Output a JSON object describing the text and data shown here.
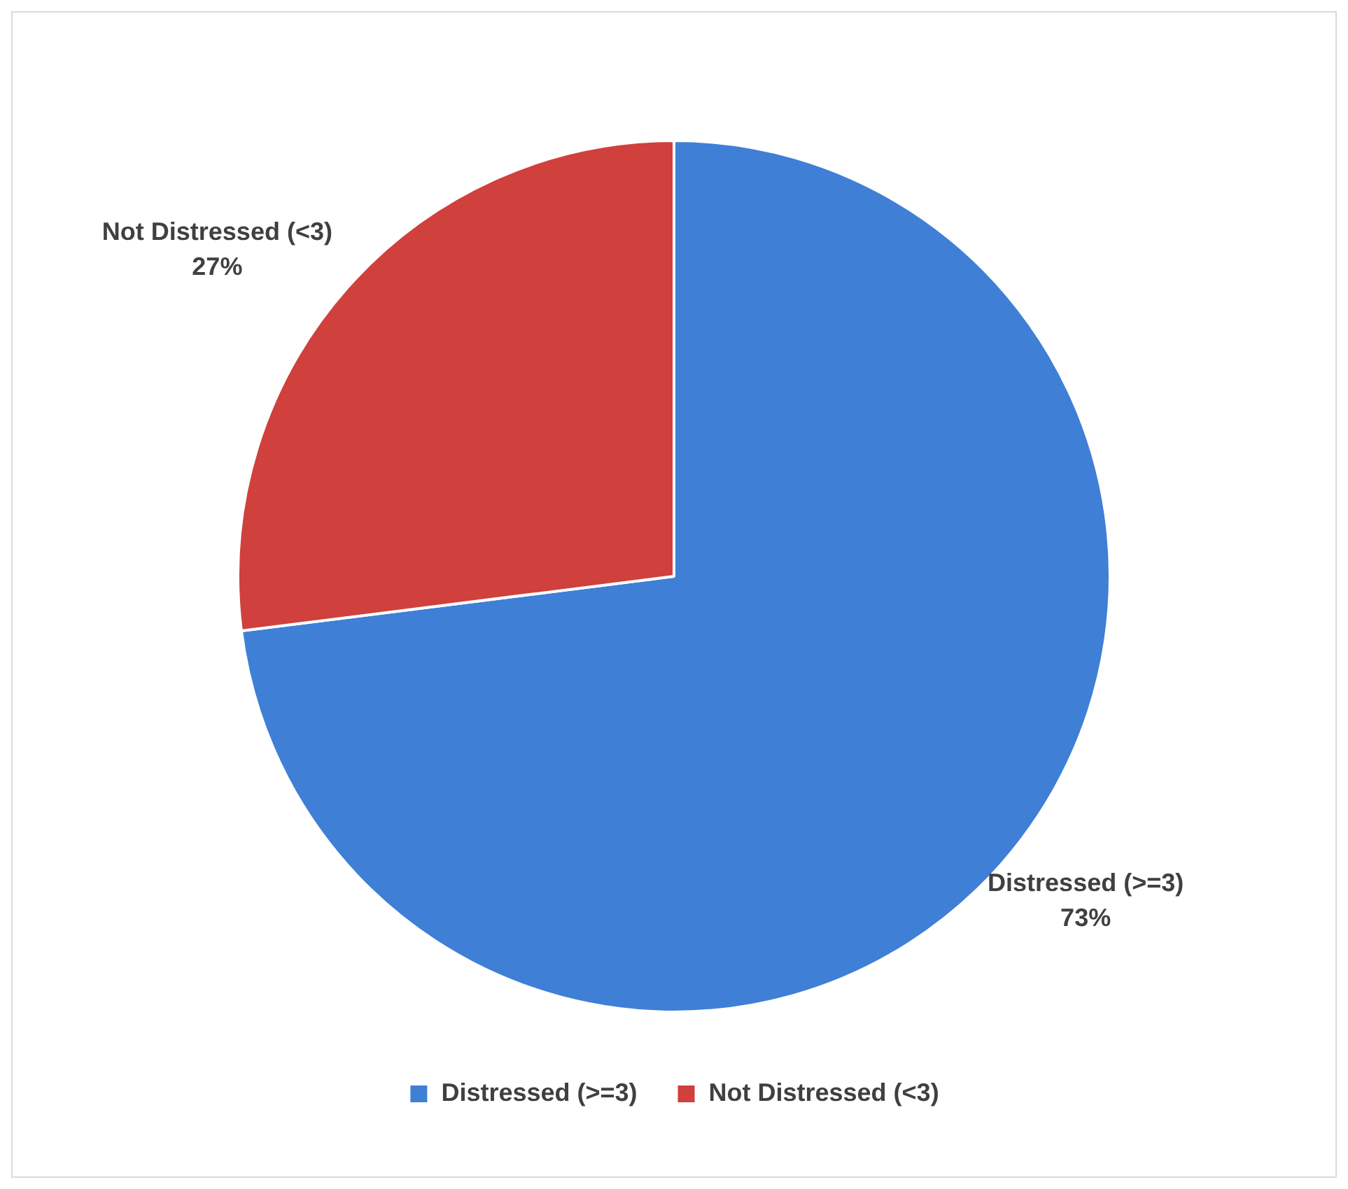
{
  "chart_data": {
    "type": "pie",
    "categories": [
      "Distressed (>=3)",
      "Not Distressed (<3)"
    ],
    "values": [
      73,
      27
    ],
    "colors": [
      "#3f7fd6",
      "#d0403c"
    ],
    "value_labels": [
      "73%",
      "27%"
    ],
    "legend": "bottom"
  }
}
